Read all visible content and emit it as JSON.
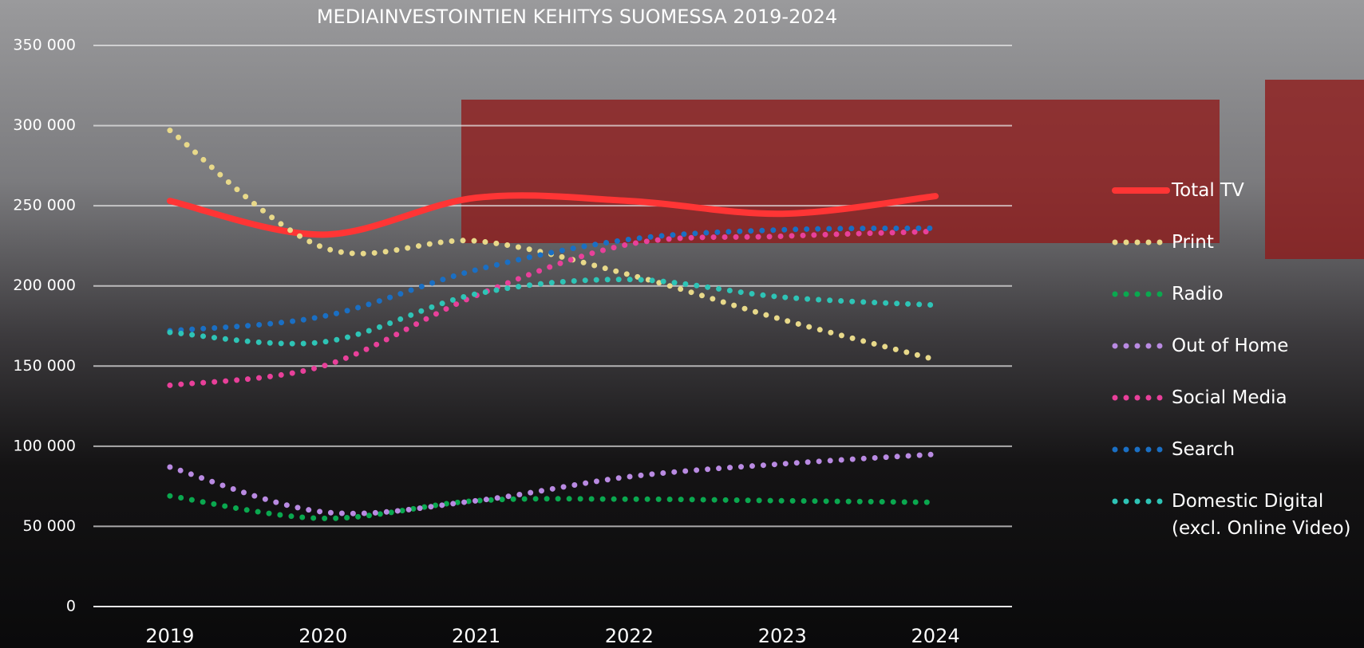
{
  "chart_data": {
    "type": "line",
    "title": "MEDIAINVESTOINTIEN KEHITYS SUOMESSA 2019-2024",
    "categories": [
      "2019",
      "2020",
      "2021",
      "2022",
      "2023",
      "2024"
    ],
    "series": [
      {
        "name": "Total TV",
        "color": "#ff3535",
        "line_style": "solid",
        "values": [
          253000,
          232000,
          255000,
          253000,
          245000,
          256000
        ]
      },
      {
        "name": "Print",
        "color": "#e8d98a",
        "line_style": "dotted",
        "values": [
          297000,
          224000,
          228000,
          207000,
          179000,
          154000
        ]
      },
      {
        "name": "Radio",
        "color": "#0aa84f",
        "line_style": "dotted",
        "values": [
          69000,
          55000,
          66000,
          67000,
          66000,
          65000
        ]
      },
      {
        "name": "Out of Home",
        "color": "#b98ae2",
        "line_style": "dotted",
        "values": [
          87000,
          59000,
          66000,
          81000,
          89000,
          95000
        ]
      },
      {
        "name": "Social Media",
        "color": "#e8409a",
        "line_style": "dotted",
        "values": [
          138000,
          150000,
          194000,
          226000,
          231000,
          234000
        ]
      },
      {
        "name": "Search",
        "color": "#1a6fc4",
        "line_style": "dotted",
        "values": [
          172000,
          181000,
          210000,
          229000,
          235000,
          236000
        ]
      },
      {
        "name": "Domestic Digital (excl. Online Video)",
        "color": "#2ec4b6",
        "line_style": "dotted",
        "values": [
          171000,
          165000,
          195000,
          204000,
          193000,
          188000
        ]
      }
    ],
    "ylim": [
      0,
      350000
    ],
    "yticks": [
      0,
      {
        "value": 50000,
        "label": "50 000"
      },
      {
        "value": 100000,
        "label": "100 000"
      },
      {
        "value": 150000,
        "label": "150 000"
      },
      {
        "value": 200000,
        "label": "200 000"
      },
      {
        "value": 250000,
        "label": "250 000"
      },
      {
        "value": 300000,
        "label": "300 000"
      },
      {
        "value": 350000,
        "label": "350 000"
      }
    ],
    "grid": true,
    "legend": "right"
  }
}
